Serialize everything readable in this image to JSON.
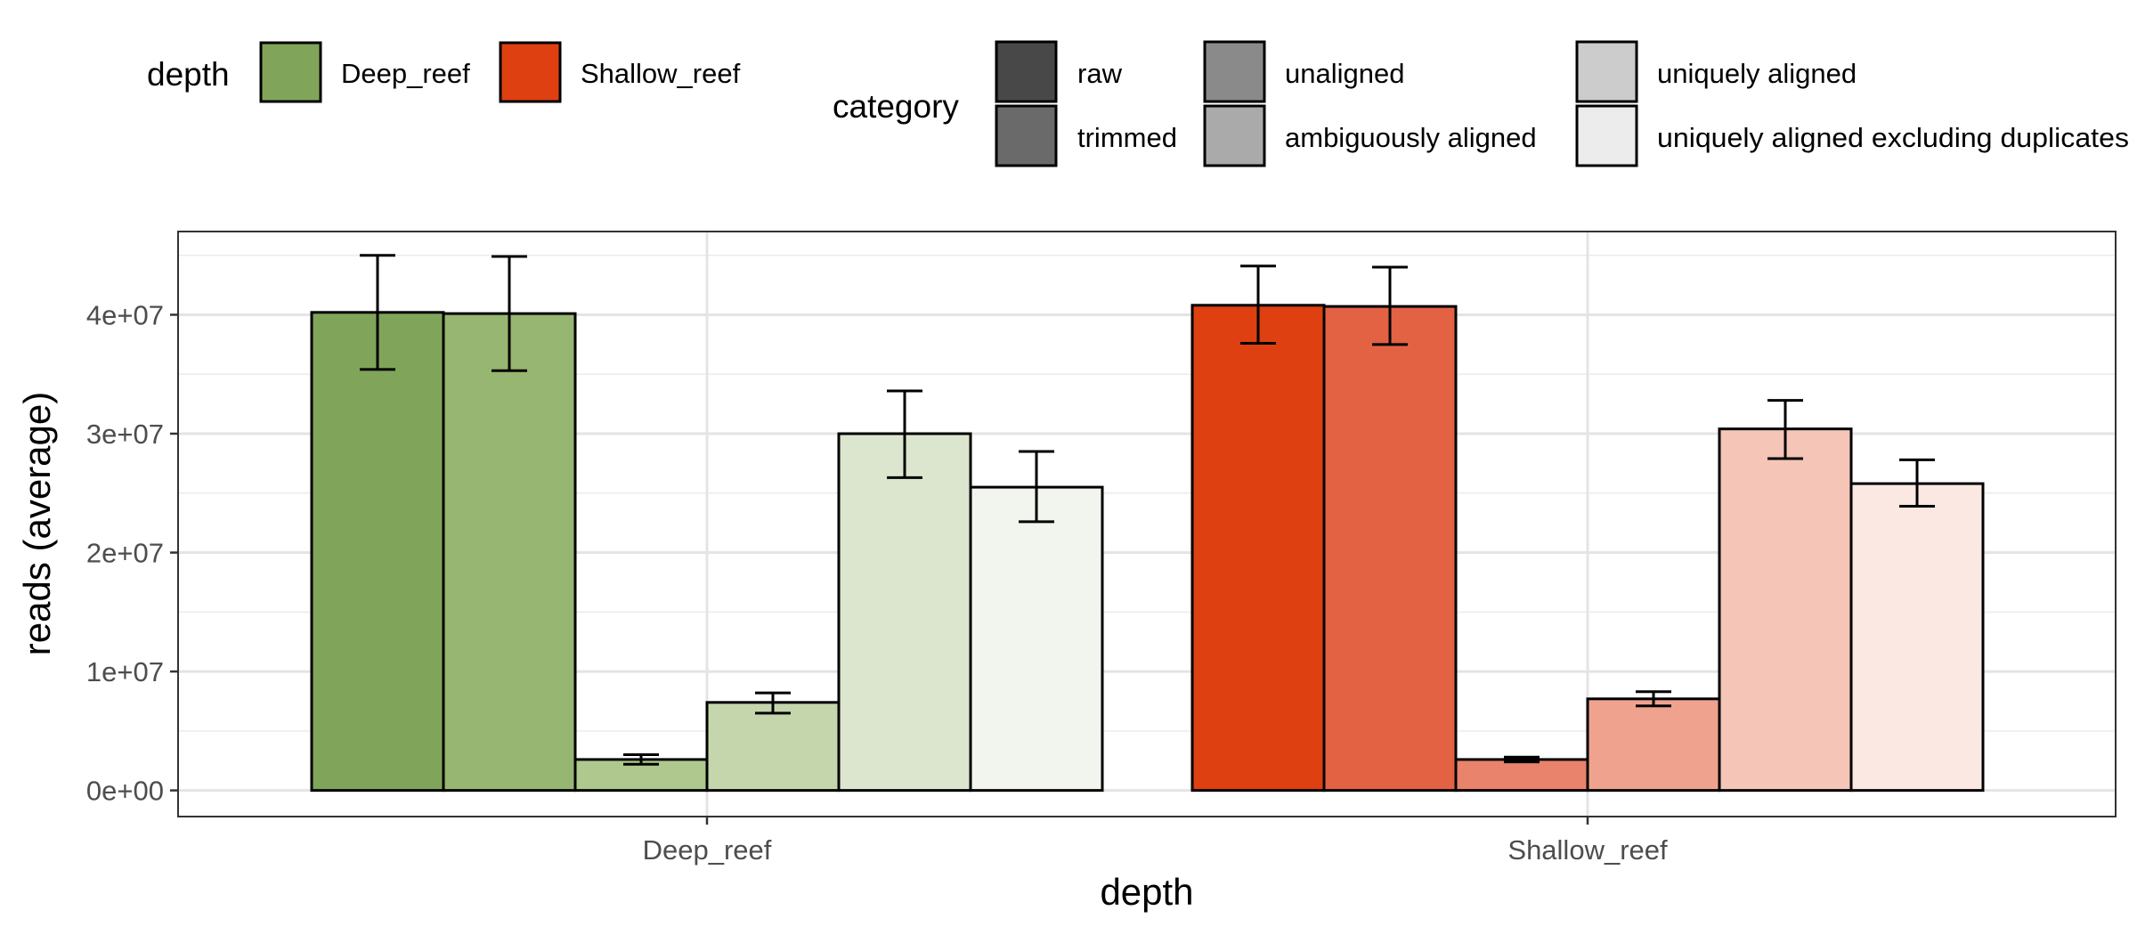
{
  "chart_data": {
    "type": "bar",
    "xlabel": "depth",
    "ylabel": "reads (average)",
    "categories": [
      "Deep_reef",
      "Shallow_reef"
    ],
    "ylim": [
      -2200000,
      47000000
    ],
    "y_ticks": [
      {
        "value": 0,
        "label": "0e+00"
      },
      {
        "value": 10000000,
        "label": "1e+07"
      },
      {
        "value": 20000000,
        "label": "2e+07"
      },
      {
        "value": 30000000,
        "label": "3e+07"
      },
      {
        "value": 40000000,
        "label": "4e+07"
      }
    ],
    "grid": true,
    "legend_placement": "top",
    "legends": {
      "depth": {
        "title": "depth",
        "entries": [
          {
            "label": "Deep_reef",
            "color": "#80a55a"
          },
          {
            "label": "Shallow_reef",
            "color": "#de4012"
          }
        ]
      },
      "category": {
        "title": "category",
        "entries": [
          {
            "label": "raw",
            "color": "#484848"
          },
          {
            "label": "trimmed",
            "color": "#6a6a6a"
          },
          {
            "label": "unaligned",
            "color": "#8a8a8a"
          },
          {
            "label": "ambiguously aligned",
            "color": "#aaaaaa"
          },
          {
            "label": "uniquely aligned",
            "color": "#cccccc"
          },
          {
            "label": "uniquely aligned excluding duplicates",
            "color": "#ececec"
          }
        ]
      }
    },
    "series": [
      {
        "name": "raw",
        "values": [
          40200000,
          40800000
        ],
        "errors": [
          [
            35400000,
            45000000
          ],
          [
            37600000,
            44100000
          ]
        ]
      },
      {
        "name": "trimmed",
        "values": [
          40100000,
          40700000
        ],
        "errors": [
          [
            35300000,
            44900000
          ],
          [
            37500000,
            44000000
          ]
        ]
      },
      {
        "name": "unaligned",
        "values": [
          2600000,
          2600000
        ],
        "errors": [
          [
            2200000,
            3000000
          ],
          [
            2400000,
            2800000
          ]
        ]
      },
      {
        "name": "ambiguously aligned",
        "values": [
          7400000,
          7700000
        ],
        "errors": [
          [
            6500000,
            8200000
          ],
          [
            7100000,
            8300000
          ]
        ]
      },
      {
        "name": "uniquely aligned",
        "values": [
          30000000,
          30400000
        ],
        "errors": [
          [
            26300000,
            33600000
          ],
          [
            27900000,
            32800000
          ]
        ]
      },
      {
        "name": "uniquely aligned excluding duplicates",
        "values": [
          25500000,
          25800000
        ],
        "errors": [
          [
            22600000,
            28500000
          ],
          [
            23900000,
            27800000
          ]
        ]
      }
    ],
    "bar_colors": {
      "Deep_reef": [
        "#80a55a",
        "#96b671",
        "#aec88e",
        "#c5d6ad",
        "#dce6cf",
        "#f1f5ed"
      ],
      "Shallow_reef": [
        "#de4012",
        "#e36243",
        "#e9836b",
        "#efa38f",
        "#f5c5b7",
        "#fce8e3"
      ]
    }
  }
}
